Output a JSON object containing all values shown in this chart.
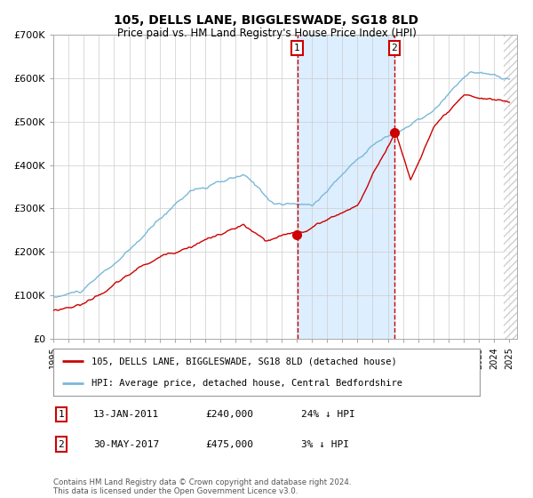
{
  "title": "105, DELLS LANE, BIGGLESWADE, SG18 8LD",
  "subtitle": "Price paid vs. HM Land Registry's House Price Index (HPI)",
  "legend_line1": "105, DELLS LANE, BIGGLESWADE, SG18 8LD (detached house)",
  "legend_line2": "HPI: Average price, detached house, Central Bedfordshire",
  "annotation1_label": "1",
  "annotation1_date": "13-JAN-2011",
  "annotation1_price": "£240,000",
  "annotation1_hpi": "24% ↓ HPI",
  "annotation2_label": "2",
  "annotation2_date": "30-MAY-2017",
  "annotation2_price": "£475,000",
  "annotation2_hpi": "3% ↓ HPI",
  "footnote": "Contains HM Land Registry data © Crown copyright and database right 2024.\nThis data is licensed under the Open Government Licence v3.0.",
  "year_start": 1995,
  "year_end": 2025,
  "ylim": [
    0,
    700000
  ],
  "yticks": [
    0,
    100000,
    200000,
    300000,
    400000,
    500000,
    600000,
    700000
  ],
  "ytick_labels": [
    "£0",
    "£100K",
    "£200K",
    "£300K",
    "£400K",
    "£500K",
    "£600K",
    "£700K"
  ],
  "hpi_color": "#7ab8d9",
  "price_color": "#cc0000",
  "bg_color": "#ffffff",
  "shading_color": "#ddeeff",
  "sale1_year": 2011.04,
  "sale1_price": 240000,
  "sale2_year": 2017.42,
  "sale2_price": 475000
}
